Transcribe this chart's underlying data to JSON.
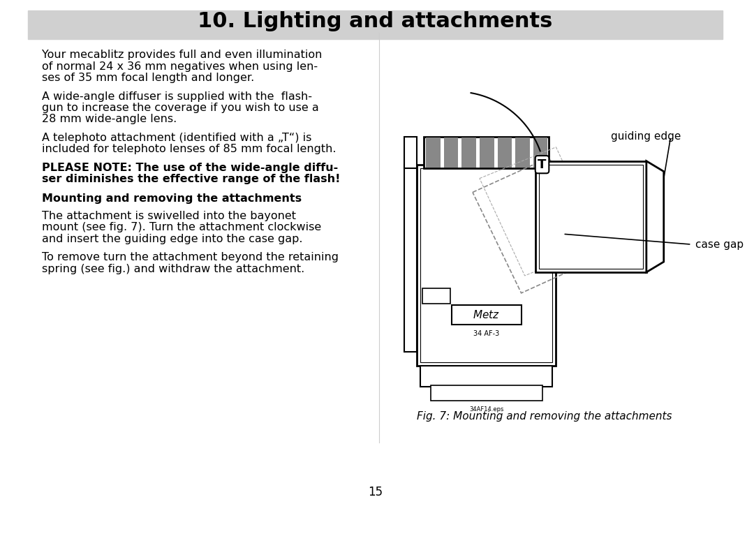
{
  "page_background": "#ffffff",
  "header_bg": "#d0d0d0",
  "header_text": "10. Lighting and attachments",
  "header_fontsize": 22,
  "body_fontsize": 11.5,
  "bold_fontsize": 11.5,
  "page_number": "15",
  "paragraphs": [
    "Your mecablitz provides full and even illumination\nof normal 24 x 36 mm negatives when using len-\nses of 35 mm focal length and longer.",
    "A wide-angle diffuser is supplied with the  flash-\ngun to increase the coverage if you wish to use a\n28 mm wide-angle lens.",
    "A telephoto attachment (identified with a „T“) is\nincluded for telephoto lenses of 85 mm focal length.",
    "BOLD:PLEASE NOTE: The use of the wide-angle diffu-\nser diminishes the effective range of the flash!",
    "SUBHEAD:Mounting and removing the attachments",
    "The attachment is swivelled into the bayonet\nmount (see fig. 7). Turn the attachment clockwise\nand insert the guiding edge into the case gap.",
    "To remove turn the attachment beyond the retaining\nspring (see fig.) and withdraw the attachment."
  ],
  "fig_caption": "Fig. 7: Mounting and removing the attachments",
  "label_guiding_edge": "guiding edge",
  "label_case_gap": "case gap"
}
